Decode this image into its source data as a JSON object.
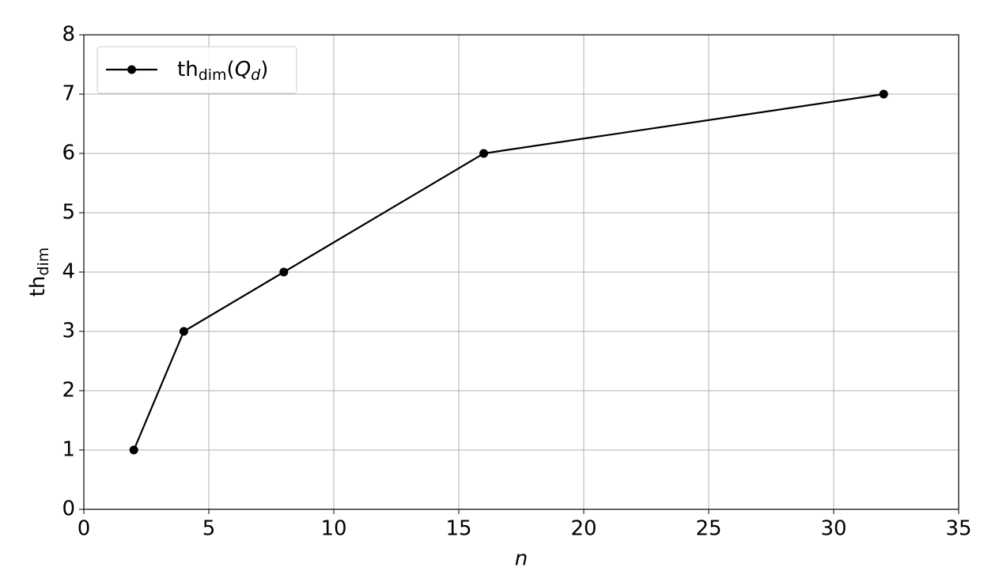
{
  "chart_data": {
    "type": "line",
    "x": [
      2,
      4,
      8,
      16,
      32
    ],
    "series": [
      {
        "name": [
          "th",
          "dim",
          "(",
          "Q",
          "d",
          ")"
        ],
        "color": "#000000",
        "values": [
          1,
          3,
          4,
          6,
          7
        ]
      }
    ],
    "xlabel": "n",
    "ylabel": [
      "th",
      "dim"
    ],
    "xlim": [
      0,
      35
    ],
    "xticks": [
      0,
      5,
      10,
      15,
      20,
      25,
      30,
      35
    ],
    "ylim": [
      0,
      8
    ],
    "yticks": [
      0,
      1,
      2,
      3,
      4,
      5,
      6,
      7,
      8
    ],
    "grid": true,
    "legend": "upper left"
  }
}
